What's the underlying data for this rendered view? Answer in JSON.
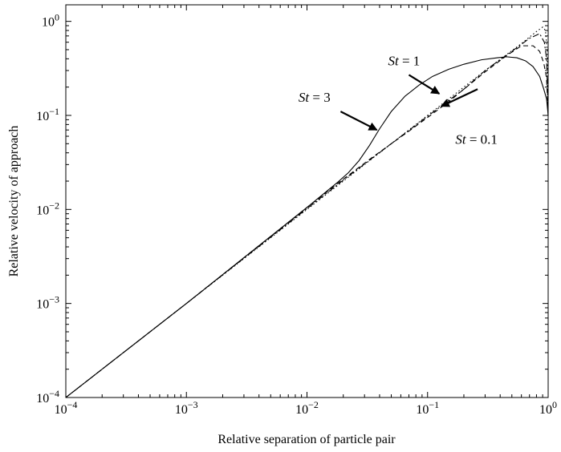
{
  "chart_data": {
    "type": "line",
    "title": "",
    "xlabel": "Relative separation of particle pair",
    "ylabel": "Relative velocity of approach",
    "xscale": "log",
    "yscale": "log",
    "xlim": [
      0.0001,
      1
    ],
    "ylim": [
      0.0001,
      1.5
    ],
    "grid": false,
    "legend": "none",
    "xticks": [
      {
        "value": 0.0001,
        "base": "10",
        "exp": "−4"
      },
      {
        "value": 0.001,
        "base": "10",
        "exp": "−3"
      },
      {
        "value": 0.01,
        "base": "10",
        "exp": "−2"
      },
      {
        "value": 0.1,
        "base": "10",
        "exp": "−1"
      },
      {
        "value": 1,
        "base": "10",
        "exp": "0"
      }
    ],
    "yticks": [
      {
        "value": 0.0001,
        "base": "10",
        "exp": "−4"
      },
      {
        "value": 0.001,
        "base": "10",
        "exp": "−3"
      },
      {
        "value": 0.01,
        "base": "10",
        "exp": "−2"
      },
      {
        "value": 0.1,
        "base": "10",
        "exp": "−1"
      },
      {
        "value": 1,
        "base": "10",
        "exp": "0"
      }
    ],
    "series": [
      {
        "style": "solid",
        "x": [
          0.0001,
          0.001,
          0.01,
          0.018,
          0.022,
          0.027,
          0.033,
          0.04,
          0.05,
          0.065,
          0.085,
          0.11,
          0.15,
          0.2,
          0.28,
          0.38,
          0.45,
          0.55,
          0.65,
          0.75,
          0.85,
          0.92,
          0.97,
          1.0
        ],
        "y": [
          0.0001,
          0.001,
          0.0105,
          0.0195,
          0.0245,
          0.033,
          0.048,
          0.072,
          0.11,
          0.16,
          0.21,
          0.26,
          0.31,
          0.35,
          0.39,
          0.41,
          0.42,
          0.41,
          0.38,
          0.33,
          0.26,
          0.19,
          0.15,
          0.1
        ]
      },
      {
        "style": "dashed",
        "x": [
          0.0001,
          0.001,
          0.01,
          0.02,
          0.035,
          0.05,
          0.07,
          0.1,
          0.15,
          0.2,
          0.3,
          0.45,
          0.6,
          0.75,
          0.85,
          0.92,
          0.97,
          1.0
        ],
        "y": [
          0.0001,
          0.001,
          0.0105,
          0.021,
          0.036,
          0.05,
          0.068,
          0.095,
          0.14,
          0.19,
          0.29,
          0.43,
          0.55,
          0.55,
          0.48,
          0.36,
          0.25,
          0.1
        ]
      },
      {
        "style": "dashdot",
        "x": [
          0.0001,
          0.001,
          0.01,
          0.02,
          0.05,
          0.1,
          0.2,
          0.3,
          0.5,
          0.7,
          0.85,
          0.93,
          0.97,
          1.0
        ],
        "y": [
          0.0001,
          0.001,
          0.0102,
          0.0205,
          0.05,
          0.098,
          0.19,
          0.3,
          0.48,
          0.66,
          0.74,
          0.6,
          0.4,
          0.1
        ]
      },
      {
        "style": "dotted",
        "x": [
          0.0001,
          0.001,
          0.01,
          0.1,
          0.3,
          0.6,
          0.8,
          0.9,
          0.95,
          0.98,
          1.0
        ],
        "y": [
          0.0001,
          0.001,
          0.01,
          0.1,
          0.3,
          0.58,
          0.78,
          0.87,
          0.8,
          0.5,
          0.1
        ]
      }
    ],
    "annotations": [
      {
        "prefix": "St",
        "text": " = 1",
        "x": 0.047,
        "y": 0.34,
        "arrow_from": [
          0.07,
          0.27
        ],
        "arrow_to": [
          0.125,
          0.17
        ]
      },
      {
        "prefix": "St",
        "text": " = 3",
        "x": 0.0085,
        "y": 0.14,
        "arrow_from": [
          0.019,
          0.11
        ],
        "arrow_to": [
          0.038,
          0.07
        ]
      },
      {
        "prefix": "St",
        "text": " = 0.1",
        "x": 0.17,
        "y": 0.05,
        "arrow_from": [
          0.26,
          0.19
        ],
        "arrow_to": [
          0.13,
          0.125
        ]
      }
    ]
  }
}
